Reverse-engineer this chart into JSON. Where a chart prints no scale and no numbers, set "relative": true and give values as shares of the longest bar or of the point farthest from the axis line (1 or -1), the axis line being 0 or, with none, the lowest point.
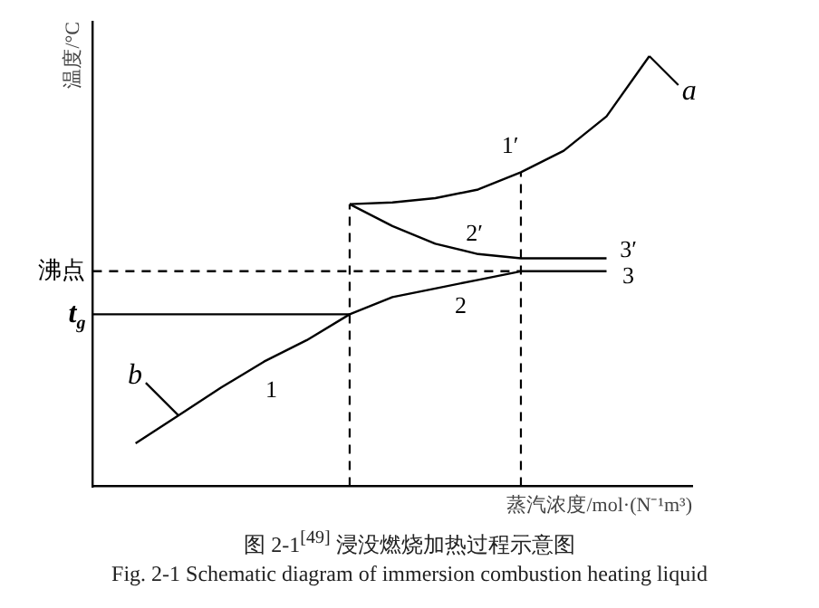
{
  "chart_data": {
    "type": "line",
    "relative": true,
    "title": "图 2-1$^{[49]}$ 浸没燃烧加热过程示意图",
    "subtitle": "Fig. 2-1 Schematic diagram of immersion combustion heating liquid",
    "xlabel": "蒸汽浓度/mol·(N⁻¹m³)",
    "ylabel": "温度/°C",
    "categories": [
      null,
      null,
      null,
      null,
      null,
      null,
      null,
      null,
      null,
      null,
      null,
      null,
      null,
      null,
      null
    ],
    "series": [
      {
        "color": "#000000",
        "values": [
          null,
          0.1,
          0.165,
          0.23,
          0.29,
          0.34,
          0.4,
          0.44,
          0.46,
          0.48,
          0.5,
          0.5,
          0.5,
          null,
          null
        ]
      },
      {
        "color": "#000000",
        "values": [
          null,
          null,
          null,
          null,
          null,
          null,
          0.656,
          0.66,
          0.67,
          0.69,
          0.73,
          0.78,
          0.86,
          1.0,
          null
        ]
      },
      {
        "color": "#000000",
        "values": [
          null,
          null,
          null,
          null,
          null,
          null,
          0.656,
          0.605,
          0.564,
          0.54,
          0.53,
          0.53,
          0.53,
          null,
          null
        ]
      },
      {
        "color": "#000000",
        "values": [
          0.4,
          0.4,
          0.4,
          0.4,
          0.4,
          0.4,
          0.4,
          null,
          null,
          null,
          null,
          null,
          null,
          null,
          null
        ]
      },
      {
        "color": "#000000",
        "line_style": "dashed",
        "values": [
          0.5,
          0.5,
          0.5,
          0.5,
          0.5,
          0.5,
          0.5,
          0.5,
          0.5,
          0.5,
          0.5,
          null,
          null,
          null,
          null
        ]
      }
    ],
    "annotations": [
      "沸点",
      "t$_{g}$",
      "1",
      "2",
      "3",
      "1′",
      "2′",
      "3′",
      "a",
      "b"
    ],
    "legend": false,
    "grid": false,
    "marker": "none",
    "line_style": "solid"
  }
}
